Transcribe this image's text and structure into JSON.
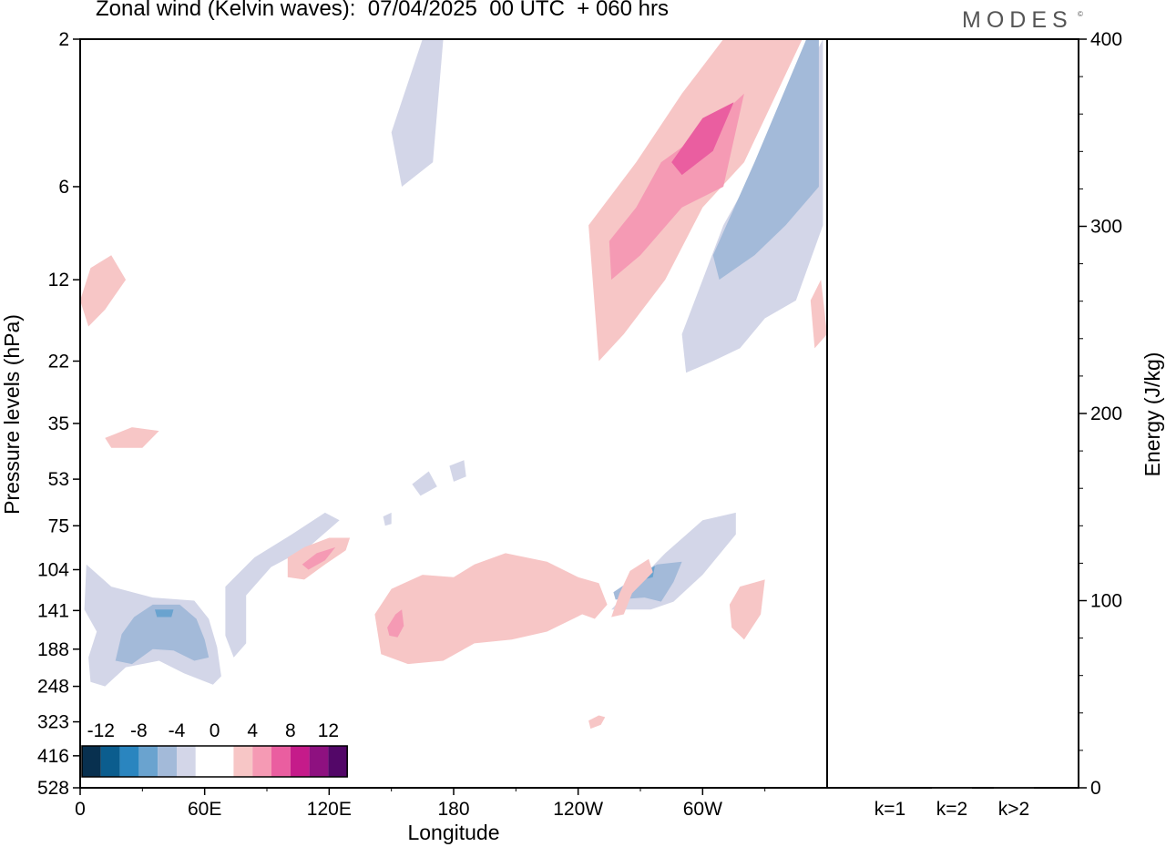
{
  "chart_data": {
    "type": "heatmap",
    "title": "Zonal wind (Kelvin waves):  07/04/2025  00 UTC  + 060 hrs",
    "logo": "MODES",
    "logo_mark": "©",
    "xlabel": "Longitude",
    "ylabel": "Pressure levels (hPa)",
    "y2label": "Energy (J/kg)",
    "x_ticks": [
      "0",
      "60E",
      "120E",
      "180",
      "120W",
      "60W"
    ],
    "x_tick_values": [
      0,
      60,
      120,
      180,
      240,
      300
    ],
    "xlim": [
      0,
      360
    ],
    "y_ticks": [
      "2",
      "6",
      "12",
      "22",
      "35",
      "53",
      "75",
      "104",
      "141",
      "188",
      "248",
      "323",
      "416",
      "528"
    ],
    "energy_axis": {
      "ylim": [
        0,
        400
      ],
      "ticks": [
        "0",
        "100",
        "200",
        "300",
        "400"
      ],
      "categories": [
        "k=1",
        "k=2",
        "k>2"
      ],
      "values": [
        0.5,
        0.3,
        0.4
      ]
    },
    "colorbar": {
      "labels": [
        "-12",
        "-8",
        "-4",
        "0",
        "4",
        "8",
        "12"
      ],
      "colors": [
        "#08304f",
        "#0b5d8e",
        "#2a85bf",
        "#6aa3cf",
        "#a3bad9",
        "#d3d6e8",
        "#ffffff",
        "#ffffff",
        "#f7c6c6",
        "#f59ab4",
        "#ea5ea0",
        "#c51b8a",
        "#8e1180",
        "#530768"
      ]
    },
    "contours": [
      {
        "level": -2,
        "color": "#d3d6e8",
        "pts": [
          [
            3,
            100
          ],
          [
            15,
            118
          ],
          [
            35,
            128
          ],
          [
            55,
            131
          ],
          [
            62,
            150
          ],
          [
            66,
            185
          ],
          [
            68,
            230
          ],
          [
            64,
            245
          ],
          [
            50,
            225
          ],
          [
            38,
            205
          ],
          [
            22,
            215
          ],
          [
            12,
            248
          ],
          [
            5,
            240
          ],
          [
            4,
            200
          ],
          [
            8,
            165
          ],
          [
            2,
            140
          ]
        ]
      },
      {
        "level": -2,
        "color": "#d3d6e8",
        "pts": [
          [
            70,
            118
          ],
          [
            84,
            95
          ],
          [
            102,
            80
          ],
          [
            118,
            68
          ],
          [
            125,
            72
          ],
          [
            110,
            88
          ],
          [
            92,
            102
          ],
          [
            80,
            126
          ],
          [
            80,
            180
          ],
          [
            74,
            200
          ],
          [
            70,
            170
          ]
        ]
      },
      {
        "level": -4,
        "color": "#a3bad9",
        "pts": [
          [
            20,
            168
          ],
          [
            26,
            148
          ],
          [
            35,
            135
          ],
          [
            48,
            135
          ],
          [
            56,
            150
          ],
          [
            60,
            175
          ],
          [
            62,
            200
          ],
          [
            55,
            205
          ],
          [
            45,
            190
          ],
          [
            35,
            188
          ],
          [
            25,
            210
          ],
          [
            17,
            205
          ]
        ]
      },
      {
        "level": -6,
        "color": "#6aa3cf",
        "pts": [
          [
            36,
            140
          ],
          [
            45,
            140
          ],
          [
            44,
            148
          ],
          [
            37,
            148
          ]
        ]
      },
      {
        "level": -2,
        "color": "#d3d6e8",
        "pts": [
          [
            256,
            140
          ],
          [
            268,
            115
          ],
          [
            282,
            92
          ],
          [
            300,
            72
          ],
          [
            316,
            68
          ],
          [
            316,
            80
          ],
          [
            300,
            108
          ],
          [
            286,
            132
          ],
          [
            275,
            140
          ]
        ]
      },
      {
        "level": -4,
        "color": "#a3bad9",
        "pts": [
          [
            257,
            123
          ],
          [
            266,
            112
          ],
          [
            278,
            100
          ],
          [
            290,
            98
          ],
          [
            286,
            114
          ],
          [
            280,
            132
          ],
          [
            272,
            128
          ],
          [
            258,
            130
          ]
        ]
      },
      {
        "level": -6,
        "color": "#6aa3cf",
        "pts": [
          [
            270,
            108
          ],
          [
            277,
            101
          ],
          [
            276,
            110
          ],
          [
            269,
            113
          ]
        ]
      },
      {
        "level": -2,
        "color": "#d3d6e8",
        "pts": [
          [
            290,
            18
          ],
          [
            310,
            8
          ],
          [
            335,
            4
          ],
          [
            358,
            2
          ],
          [
            358,
            8
          ],
          [
            345,
            14
          ],
          [
            330,
            16
          ],
          [
            318,
            20
          ],
          [
            305,
            22
          ],
          [
            292,
            24
          ]
        ]
      },
      {
        "level": -4,
        "color": "#a3bad9",
        "pts": [
          [
            305,
            10
          ],
          [
            325,
            5
          ],
          [
            350,
            2
          ],
          [
            356,
            2
          ],
          [
            356,
            6
          ],
          [
            340,
            8
          ],
          [
            325,
            10
          ],
          [
            308,
            12
          ]
        ]
      },
      {
        "level": -2,
        "color": "#d3d6e8",
        "pts": [
          [
            150,
            4
          ],
          [
            165,
            2
          ],
          [
            175,
            2
          ],
          [
            170,
            5
          ],
          [
            155,
            6
          ]
        ]
      },
      {
        "level": -2,
        "color": "#d3d6e8",
        "pts": [
          [
            160,
            55
          ],
          [
            168,
            50
          ],
          [
            172,
            56
          ],
          [
            164,
            60
          ]
        ]
      },
      {
        "level": 2,
        "color": "#f7c6c6",
        "pts": [
          [
            142,
            145
          ],
          [
            150,
            120
          ],
          [
            165,
            108
          ],
          [
            180,
            110
          ],
          [
            190,
            100
          ],
          [
            205,
            92
          ],
          [
            225,
            98
          ],
          [
            240,
            110
          ],
          [
            250,
            115
          ],
          [
            254,
            135
          ],
          [
            248,
            150
          ],
          [
            242,
            145
          ],
          [
            225,
            165
          ],
          [
            208,
            175
          ],
          [
            190,
            180
          ],
          [
            175,
            205
          ],
          [
            158,
            210
          ],
          [
            145,
            195
          ]
        ]
      },
      {
        "level": 4,
        "color": "#f59ab4",
        "pts": [
          [
            148,
            160
          ],
          [
            152,
            145
          ],
          [
            155,
            140
          ],
          [
            156,
            158
          ],
          [
            153,
            172
          ],
          [
            149,
            170
          ]
        ]
      },
      {
        "level": 2,
        "color": "#f7c6c6",
        "pts": [
          [
            100,
            95
          ],
          [
            108,
            88
          ],
          [
            120,
            82
          ],
          [
            130,
            82
          ],
          [
            128,
            90
          ],
          [
            118,
            100
          ],
          [
            108,
            112
          ],
          [
            100,
            110
          ]
        ]
      },
      {
        "level": 4,
        "color": "#f59ab4",
        "pts": [
          [
            107,
            100
          ],
          [
            114,
            92
          ],
          [
            123,
            88
          ],
          [
            118,
            97
          ],
          [
            110,
            104
          ]
        ]
      },
      {
        "level": 2,
        "color": "#f7c6c6",
        "pts": [
          [
            256,
            148
          ],
          [
            260,
            124
          ],
          [
            265,
            105
          ],
          [
            274,
            96
          ],
          [
            276,
            106
          ],
          [
            266,
            124
          ],
          [
            262,
            145
          ]
        ]
      },
      {
        "level": 2,
        "color": "#f7c6c6",
        "pts": [
          [
            313,
            135
          ],
          [
            318,
            118
          ],
          [
            330,
            112
          ],
          [
            328,
            145
          ],
          [
            320,
            175
          ],
          [
            314,
            160
          ]
        ]
      },
      {
        "level": 2,
        "color": "#f7c6c6",
        "pts": [
          [
            245,
            320
          ],
          [
            250,
            308
          ],
          [
            253,
            312
          ],
          [
            251,
            330
          ],
          [
            246,
            340
          ]
        ]
      },
      {
        "level": 2,
        "color": "#f7c6c6",
        "pts": [
          [
            245,
            8
          ],
          [
            268,
            5
          ],
          [
            290,
            3
          ],
          [
            310,
            2
          ],
          [
            348,
            2
          ],
          [
            320,
            5
          ],
          [
            300,
            7
          ],
          [
            282,
            12
          ],
          [
            262,
            18
          ],
          [
            250,
            22
          ]
        ]
      },
      {
        "level": 4,
        "color": "#f59ab4",
        "pts": [
          [
            255,
            9
          ],
          [
            268,
            7
          ],
          [
            280,
            5
          ],
          [
            300,
            4
          ],
          [
            320,
            3
          ],
          [
            310,
            6
          ],
          [
            290,
            7
          ],
          [
            270,
            10
          ],
          [
            256,
            12
          ]
        ]
      },
      {
        "level": 6,
        "color": "#ea5ea0",
        "pts": [
          [
            285,
            5
          ],
          [
            300,
            3.6
          ],
          [
            315,
            3.2
          ],
          [
            305,
            4.6
          ],
          [
            290,
            5.5
          ]
        ]
      },
      {
        "level": 2,
        "color": "#f7c6c6",
        "pts": [
          [
            12,
            39
          ],
          [
            25,
            36
          ],
          [
            38,
            37
          ],
          [
            30,
            42
          ],
          [
            15,
            42
          ]
        ]
      },
      {
        "level": 2,
        "color": "#f7c6c6",
        "pts": [
          [
            0,
            14
          ],
          [
            5,
            11
          ],
          [
            15,
            10
          ],
          [
            22,
            12
          ],
          [
            12,
            15
          ],
          [
            4,
            17
          ]
        ]
      },
      {
        "level": 2,
        "color": "#f7c6c6",
        "pts": [
          [
            360,
            18
          ],
          [
            354,
            20
          ],
          [
            352,
            14
          ],
          [
            357,
            12
          ]
        ]
      },
      {
        "level": -2,
        "color": "#d3d6e8",
        "pts": [
          [
            146,
            70
          ],
          [
            150,
            68
          ],
          [
            150,
            74
          ],
          [
            147,
            75
          ]
        ]
      },
      {
        "level": -2,
        "color": "#d3d6e8",
        "pts": [
          [
            178,
            48
          ],
          [
            185,
            46
          ],
          [
            186,
            52
          ],
          [
            180,
            54
          ]
        ]
      }
    ]
  }
}
